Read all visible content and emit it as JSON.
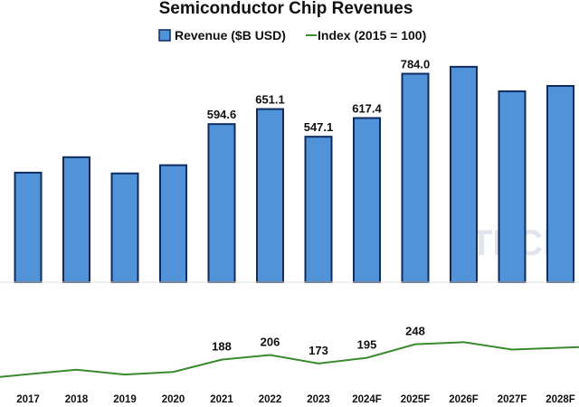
{
  "chart_data": {
    "type": "bar",
    "title": "Semiconductor Chip Revenues",
    "categories": [
      "2017",
      "2018",
      "2019",
      "2020",
      "2021",
      "2022",
      "2023",
      "2024F",
      "2025F",
      "2026F",
      "2027F",
      "2028F"
    ],
    "series": [
      {
        "name": "Revenue ($B USD)",
        "type": "bar",
        "values": [
          412,
          470,
          409,
          440,
          594.6,
          651.1,
          547.1,
          617.4,
          784.0,
          810,
          718,
          738
        ],
        "labels": [
          "",
          "",
          "",
          "",
          "594.6",
          "651.1",
          "547.1",
          "617.4",
          "784.0",
          "",
          "",
          ""
        ]
      },
      {
        "name": "Index (2015 = 100)",
        "type": "line",
        "values": [
          131,
          149,
          130,
          140,
          188,
          206,
          173,
          195,
          248,
          256,
          227,
          234
        ],
        "labels": [
          "",
          "",
          "",
          "",
          "188",
          "206",
          "173",
          "195",
          "248",
          "",
          "",
          ""
        ]
      }
    ],
    "colors": {
      "bar_fill": "#5193d9",
      "bar_stroke": "#0e2c5e",
      "line": "#3a8a2e"
    },
    "legend": "top-center",
    "grid": false,
    "watermark": "TECH"
  }
}
